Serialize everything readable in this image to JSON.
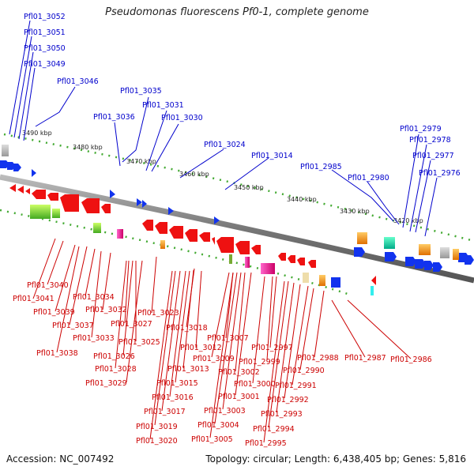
{
  "title": "Pseudomonas fluorescens Pf0-1, complete genome",
  "footer": {
    "accession": "Accession: NC_007492",
    "summary": "Topology: circular; Length: 6,438,405 bp; Genes: 5,816"
  },
  "colors": {
    "upper_labels": "#0000cc",
    "lower_labels": "#cc0000",
    "backbone": "#888888"
  },
  "ticks": [
    "3490 kbp",
    "3480 kbp",
    "3470 kbp",
    "3460 kbp",
    "3450 kbp",
    "3440 kbp",
    "3430 kbp",
    "3420 kbp"
  ],
  "upper_labels": [
    "Pfl01_3052",
    "Pfl01_3051",
    "Pfl01_3050",
    "Pfl01_3049",
    "Pfl01_3046",
    "Pfl01_3035",
    "Pfl01_3036",
    "Pfl01_3031",
    "Pfl01_3030",
    "Pfl01_3024",
    "Pfl01_3014",
    "Pfl01_2985",
    "Pfl01_2980",
    "Pfl01_2979",
    "Pfl01_2978",
    "Pfl01_2977",
    "Pfl01_2976"
  ],
  "lower_labels": [
    "Pfl01_3040",
    "Pfl01_3041",
    "Pfl01_3039",
    "Pfl01_3034",
    "Pfl01_3037",
    "Pfl01_3032",
    "Pfl01_3033",
    "Pfl01_3038",
    "Pfl01_3027",
    "Pfl01_3023",
    "Pfl01_3025",
    "Pfl01_3026",
    "Pfl01_3018",
    "Pfl01_3028",
    "Pfl01_3012",
    "Pfl01_3013",
    "Pfl01_3029",
    "Pfl01_3015",
    "Pfl01_3016",
    "Pfl01_3017",
    "Pfl01_3019",
    "Pfl01_3020",
    "Pfl01_3007",
    "Pfl01_3009",
    "Pfl01_3002",
    "Pfl01_3001",
    "Pfl01_3003",
    "Pfl01_3004",
    "Pfl01_3005",
    "Pfl01_2997",
    "Pfl01_2999",
    "Pfl01_3000",
    "Pfl01_2988",
    "Pfl01_2990",
    "Pfl01_2991",
    "Pfl01_2992",
    "Pfl01_2993",
    "Pfl01_2994",
    "Pfl01_2995",
    "Pfl01_2987",
    "Pfl01_2986"
  ]
}
